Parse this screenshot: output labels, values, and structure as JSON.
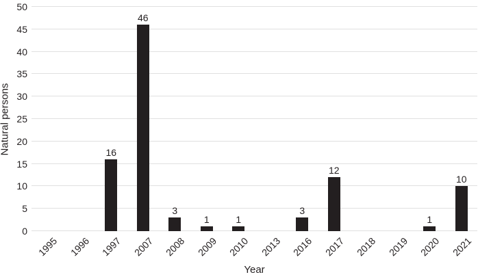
{
  "chart_data": {
    "type": "bar",
    "title": "",
    "categories": [
      "1995",
      "1996",
      "1997",
      "2007",
      "2008",
      "2009",
      "2010",
      "2013",
      "2016",
      "2017",
      "2018",
      "2019",
      "2020",
      "2021"
    ],
    "values": [
      0,
      0,
      16,
      46,
      3,
      1,
      1,
      0,
      3,
      12,
      0,
      0,
      1,
      10
    ],
    "value_labels_shown": [
      "16",
      "46",
      "3",
      "1",
      "1",
      "3",
      "12",
      "1",
      "10"
    ],
    "xlabel": "Year",
    "ylabel": "Natural persons",
    "ylim": [
      0,
      50
    ],
    "ytick_step": 5,
    "yticks": [
      "0",
      "5",
      "10",
      "15",
      "20",
      "25",
      "30",
      "35",
      "40",
      "45",
      "50"
    ],
    "grid": "horizontal",
    "legend": "none",
    "bar_color": "#231f20",
    "gridline_color": "#e0e0e0",
    "text_color": "#231f20",
    "background_color": "#ffffff"
  }
}
